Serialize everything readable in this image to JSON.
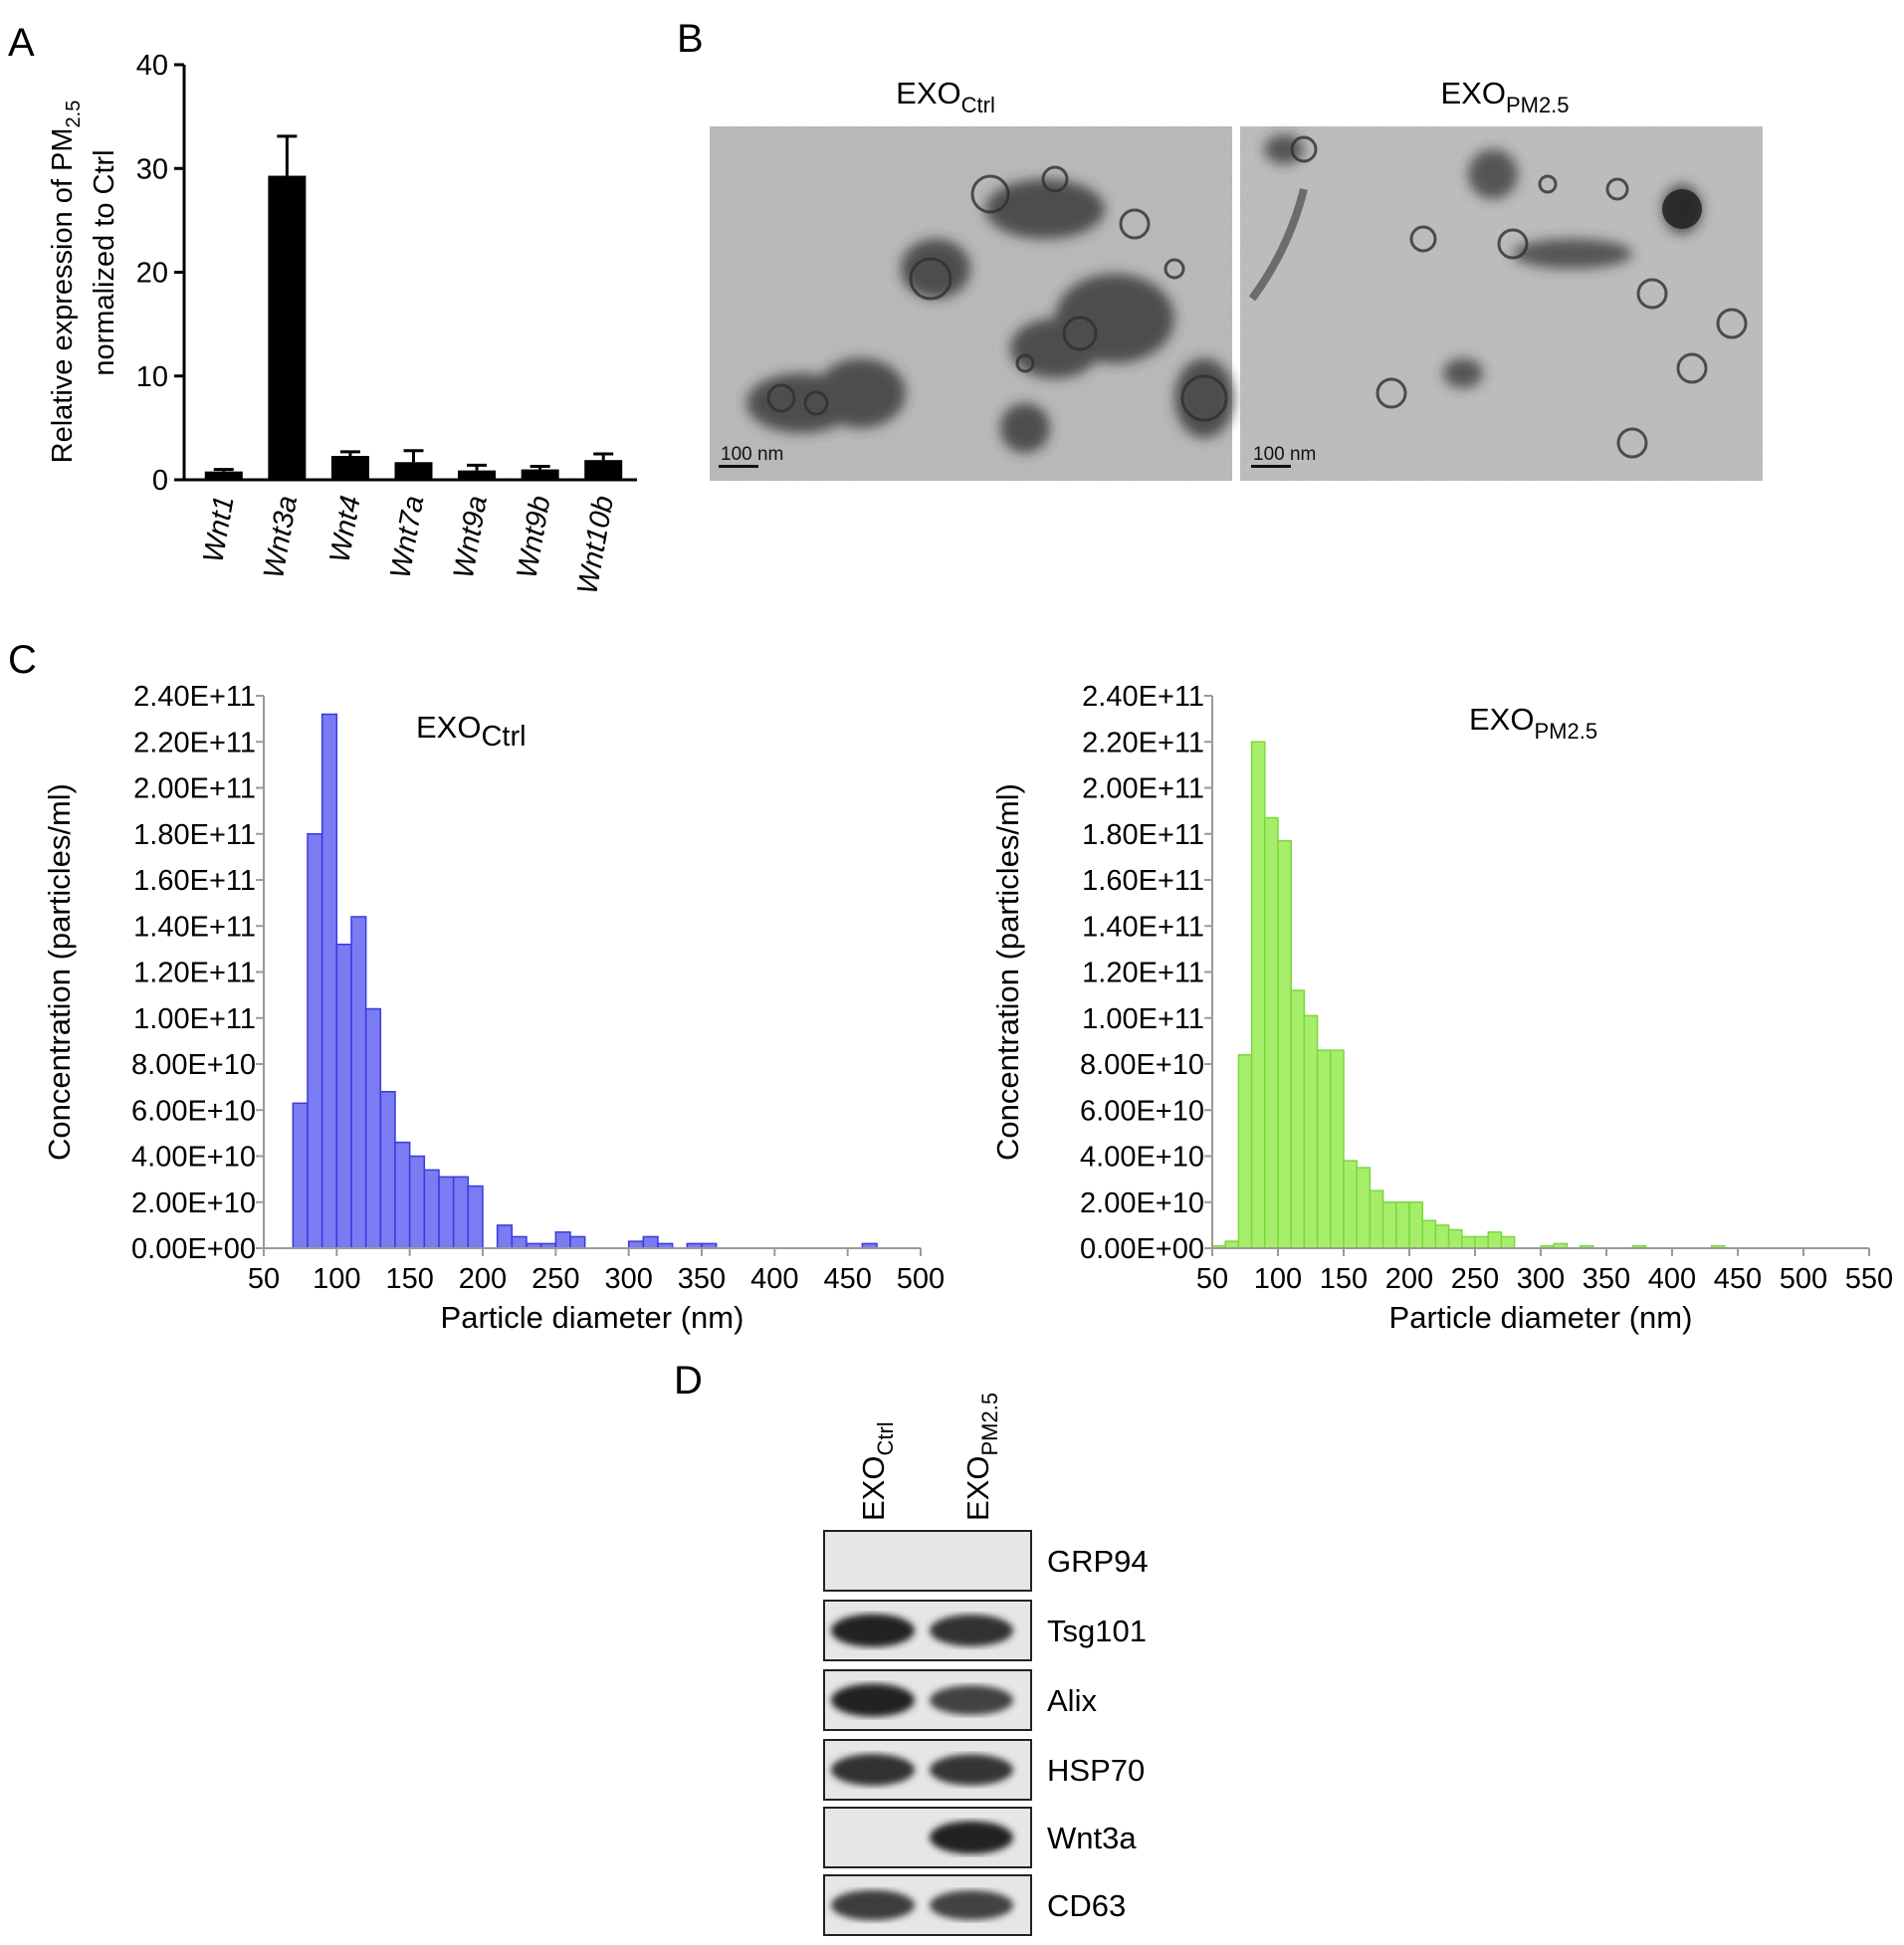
{
  "panel_letters": [
    "A",
    "B",
    "C",
    "D"
  ],
  "colors": {
    "bar_black": "#000000",
    "hist_blue_fill": "#7b7bf2",
    "hist_blue_edge": "#3a3ae0",
    "hist_green_fill": "#a6ee6a",
    "hist_green_edge": "#7ad83c",
    "axis": "#000000",
    "grid_axis_gray": "#9a9a9a"
  },
  "panel_b": {
    "images": [
      {
        "label_main": "EXO",
        "label_sub": "Ctrl",
        "scale_bar": "100 nm"
      },
      {
        "label_main": "EXO",
        "label_sub": "PM2.5",
        "scale_bar": "100 nm"
      }
    ]
  },
  "panel_d": {
    "lanes": [
      {
        "label_main": "EXO",
        "label_sub": "Ctrl"
      },
      {
        "label_main": "EXO",
        "label_sub": "PM2.5"
      }
    ],
    "blots": [
      {
        "protein": "GRP94",
        "intensity": [
          0.0,
          0.0
        ]
      },
      {
        "protein": "Tsg101",
        "intensity": [
          0.95,
          0.85
        ]
      },
      {
        "protein": "Alix",
        "intensity": [
          0.95,
          0.7
        ]
      },
      {
        "protein": "HSP70",
        "intensity": [
          0.85,
          0.8
        ]
      },
      {
        "protein": "Wnt3a",
        "intensity": [
          0.0,
          0.95
        ]
      },
      {
        "protein": "CD63",
        "intensity": [
          0.75,
          0.7
        ]
      }
    ]
  },
  "chart_data": [
    {
      "panel": "A",
      "type": "bar",
      "ylabel_line1_main": "Relative expression of PM",
      "ylabel_line1_sub": "2.5",
      "ylabel_line2": "normalized to Ctrl",
      "ylim": [
        0,
        40
      ],
      "yticks": [
        "0",
        "10",
        "20",
        "30",
        "40"
      ],
      "categories": [
        "Wnt1",
        "Wnt3a",
        "Wnt4",
        "Wnt7a",
        "Wnt9a",
        "Wnt9b",
        "Wnt10b"
      ],
      "values": [
        0.8,
        29.3,
        2.3,
        1.7,
        0.9,
        1.0,
        1.9
      ],
      "errors": [
        0.2,
        3.8,
        0.4,
        1.1,
        0.5,
        0.3,
        0.6
      ]
    },
    {
      "panel": "C-left",
      "type": "bar",
      "title_main": "EXO",
      "title_sub": "Ctrl",
      "xlabel": "Particle diameter (nm)",
      "ylabel": "Concentration (particles/ml)",
      "xlim": [
        50,
        500
      ],
      "ylim": [
        0,
        240000000000.0
      ],
      "xticks": [
        "50",
        "100",
        "150",
        "200",
        "250",
        "300",
        "350",
        "400",
        "450",
        "500"
      ],
      "yticks": [
        "0.00E+00",
        "2.00E+10",
        "4.00E+10",
        "6.00E+10",
        "8.00E+10",
        "1.00E+11",
        "1.20E+11",
        "1.40E+11",
        "1.60E+11",
        "1.80E+11",
        "2.00E+11",
        "2.20E+11",
        "2.40E+11"
      ],
      "bin_width": 10,
      "x": [
        75,
        85,
        95,
        105,
        115,
        125,
        135,
        145,
        155,
        165,
        175,
        185,
        195,
        215,
        225,
        235,
        245,
        255,
        265,
        305,
        315,
        325,
        345,
        355,
        465
      ],
      "values": [
        63000000000.0,
        180000000000.0,
        232000000000.0,
        132000000000.0,
        144000000000.0,
        104000000000.0,
        68000000000.0,
        46000000000.0,
        40000000000.0,
        34000000000.0,
        31000000000.0,
        31000000000.0,
        27000000000.0,
        10000000000.0,
        5000000000.0,
        2000000000.0,
        2000000000.0,
        7000000000.0,
        5000000000.0,
        3000000000.0,
        5000000000.0,
        2000000000.0,
        2000000000.0,
        2000000000.0,
        2000000000.0
      ]
    },
    {
      "panel": "C-right",
      "type": "bar",
      "title_main": "EXO",
      "title_sub": "PM2.5",
      "xlabel": "Particle diameter (nm)",
      "ylabel": "Concentration (particles/ml)",
      "xlim": [
        50,
        550
      ],
      "ylim": [
        0,
        240000000000.0
      ],
      "xticks": [
        "50",
        "100",
        "150",
        "200",
        "250",
        "300",
        "350",
        "400",
        "450",
        "500",
        "550"
      ],
      "yticks": [
        "0.00E+00",
        "2.00E+10",
        "4.00E+10",
        "6.00E+10",
        "8.00E+10",
        "1.00E+11",
        "1.20E+11",
        "1.40E+11",
        "1.60E+11",
        "1.80E+11",
        "2.00E+11",
        "2.20E+11",
        "2.40E+11"
      ],
      "bin_width": 10,
      "x": [
        55,
        65,
        75,
        85,
        95,
        105,
        115,
        125,
        135,
        145,
        155,
        165,
        175,
        185,
        195,
        205,
        215,
        225,
        235,
        245,
        255,
        265,
        275,
        305,
        315,
        335,
        375,
        435
      ],
      "values": [
        1000000000.0,
        3000000000.0,
        84000000000.0,
        220000000000.0,
        187000000000.0,
        177000000000.0,
        112000000000.0,
        101000000000.0,
        86000000000.0,
        86000000000.0,
        38000000000.0,
        35000000000.0,
        25000000000.0,
        20000000000.0,
        20000000000.0,
        20000000000.0,
        12000000000.0,
        10000000000.0,
        8000000000.0,
        5000000000.0,
        5000000000.0,
        7000000000.0,
        5000000000.0,
        1000000000.0,
        2000000000.0,
        1000000000.0,
        1000000000.0,
        1000000000.0
      ]
    }
  ]
}
